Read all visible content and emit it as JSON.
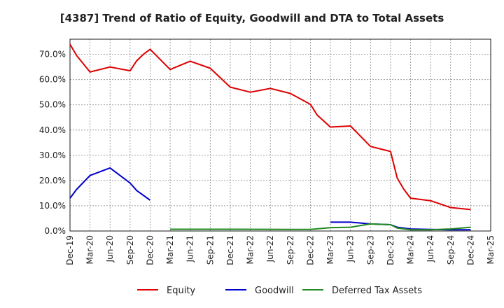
{
  "chart_data": {
    "type": "line",
    "title": "[4387]  Trend of Ratio of Equity, Goodwill and DTA to Total Assets",
    "xlabel": "",
    "ylabel": "",
    "x_ticks": [
      "Dec-19",
      "Mar-20",
      "Jun-20",
      "Sep-20",
      "Dec-20",
      "Mar-21",
      "Jun-21",
      "Sep-21",
      "Dec-21",
      "Mar-22",
      "Jun-22",
      "Sep-22",
      "Dec-22",
      "Mar-23",
      "Jun-23",
      "Sep-23",
      "Dec-23",
      "Mar-24",
      "Jun-24",
      "Sep-24",
      "Dec-24",
      "Mar-25"
    ],
    "y_ticks": [
      "0.0%",
      "10.0%",
      "20.0%",
      "30.0%",
      "40.0%",
      "50.0%",
      "60.0%",
      "70.0%"
    ],
    "y_tick_values": [
      0,
      10,
      20,
      30,
      40,
      50,
      60,
      70
    ],
    "ylim": [
      0,
      76
    ],
    "x_range_months": [
      0,
      63
    ],
    "grid": true,
    "legend_position": "bottom",
    "series": [
      {
        "name": "Equity",
        "color": "#dd0000",
        "points": [
          [
            0,
            74.0
          ],
          [
            1,
            69.5
          ],
          [
            3,
            63.0
          ],
          [
            6,
            65.0
          ],
          [
            9,
            63.5
          ],
          [
            10,
            67.5
          ],
          [
            11,
            70.0
          ],
          [
            12,
            72.0
          ],
          [
            15,
            64.0
          ],
          [
            18,
            67.3
          ],
          [
            21,
            64.5
          ],
          [
            24,
            57.0
          ],
          [
            27,
            55.0
          ],
          [
            30,
            56.5
          ],
          [
            33,
            54.5
          ],
          [
            36,
            50.2
          ],
          [
            37,
            46.0
          ],
          [
            39,
            41.2
          ],
          [
            42,
            41.6
          ],
          [
            45,
            33.5
          ],
          [
            48,
            31.5
          ],
          [
            49,
            21.0
          ],
          [
            50,
            16.5
          ],
          [
            51,
            13.0
          ],
          [
            54,
            12.0
          ],
          [
            57,
            9.3
          ],
          [
            60,
            8.5
          ]
        ]
      },
      {
        "name": "Goodwill",
        "color": "#0000cc",
        "points": [
          [
            0,
            13.0
          ],
          [
            1,
            16.5
          ],
          [
            3,
            22.0
          ],
          [
            6,
            25.0
          ],
          [
            8,
            21.0
          ],
          [
            9,
            19.0
          ],
          [
            10,
            16.0
          ],
          [
            12,
            12.2
          ],
          [
            39,
            3.5
          ],
          [
            42,
            3.5
          ],
          [
            45,
            2.8
          ],
          [
            48,
            2.5
          ],
          [
            49,
            1.5
          ],
          [
            51,
            0.8
          ],
          [
            54,
            0.6
          ],
          [
            57,
            0.5
          ],
          [
            60,
            0.5
          ]
        ]
      },
      {
        "name": "Deferred Tax Assets",
        "color": "#228822",
        "points": [
          [
            15,
            0.7
          ],
          [
            24,
            0.7
          ],
          [
            33,
            0.6
          ],
          [
            36,
            0.6
          ],
          [
            39,
            1.3
          ],
          [
            42,
            1.5
          ],
          [
            45,
            2.8
          ],
          [
            48,
            2.5
          ],
          [
            49,
            1.2
          ],
          [
            51,
            0.5
          ],
          [
            54,
            0.5
          ],
          [
            57,
            0.8
          ],
          [
            60,
            1.5
          ]
        ]
      }
    ],
    "segments": {
      "Equity": [
        [
          0,
          26
        ]
      ],
      "Goodwill": [
        [
          0,
          7
        ],
        [
          8,
          16
        ]
      ],
      "Deferred Tax Assets": [
        [
          0,
          12
        ]
      ]
    }
  }
}
